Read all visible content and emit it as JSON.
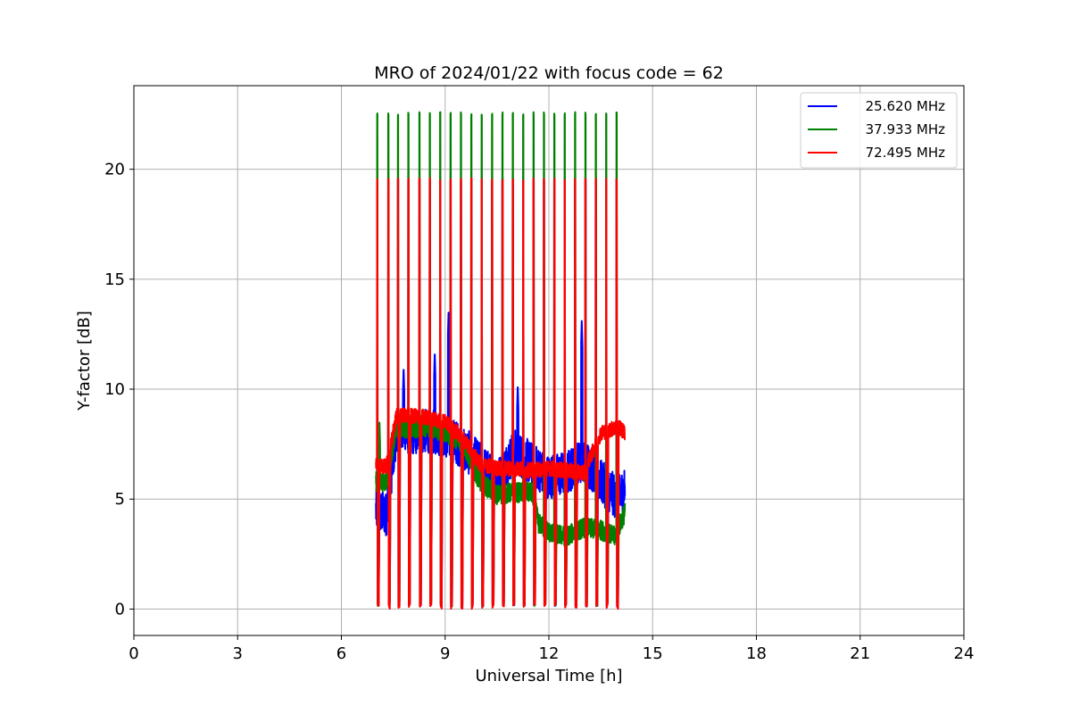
{
  "chart_data": {
    "type": "line",
    "title": "MRO of 2024/01/22 with focus code = 62",
    "xlabel": "Universal Time [h]",
    "ylabel": "Y-factor [dB]",
    "xlim": [
      0,
      24
    ],
    "ylim": [
      -1.2,
      23.8
    ],
    "xticks": [
      0,
      3,
      6,
      9,
      12,
      15,
      18,
      21,
      24
    ],
    "yticks": [
      0,
      5,
      10,
      15,
      20
    ],
    "grid": true,
    "legend_position": "top-right",
    "data_range_hours": [
      7.0,
      14.2
    ],
    "calibration_spike_times": [
      7.03,
      7.35,
      7.63,
      7.93,
      8.25,
      8.55,
      8.85,
      9.15,
      9.45,
      9.75,
      10.05,
      10.35,
      10.65,
      10.95,
      11.25,
      11.55,
      11.85,
      12.15,
      12.45,
      12.75,
      13.05,
      13.35,
      13.65,
      13.95
    ],
    "series": [
      {
        "name": "25.620 MHz",
        "color": "#0000ff",
        "spike_peak": 19.6,
        "spike_min": 0.1,
        "baseline": {
          "x": [
            7.0,
            7.3,
            7.6,
            8.0,
            8.5,
            9.0,
            9.5,
            10.0,
            10.5,
            11.0,
            11.5,
            12.0,
            12.5,
            13.0,
            13.5,
            14.0,
            14.2
          ],
          "y": [
            4.5,
            4.3,
            8.2,
            8.0,
            8.1,
            7.9,
            7.4,
            6.6,
            5.8,
            7.2,
            6.6,
            6.0,
            6.2,
            6.8,
            5.8,
            5.0,
            5.5
          ]
        },
        "noise": 1.0,
        "excursions": [
          {
            "x": 9.1,
            "y": 13.6
          },
          {
            "x": 12.95,
            "y": 13.1
          },
          {
            "x": 8.7,
            "y": 11.7
          },
          {
            "x": 13.7,
            "y": 11.4
          },
          {
            "x": 7.8,
            "y": 11.0
          },
          {
            "x": 11.1,
            "y": 10.2
          }
        ]
      },
      {
        "name": "37.933 MHz",
        "color": "#008000",
        "spike_peak": 22.6,
        "spike_min": 0.1,
        "baseline": {
          "x": [
            7.0,
            7.3,
            7.6,
            8.0,
            8.5,
            9.0,
            9.5,
            10.0,
            10.5,
            11.0,
            11.5,
            11.7,
            12.0,
            12.5,
            13.0,
            13.5,
            13.9,
            14.2
          ],
          "y": [
            5.8,
            5.8,
            8.3,
            8.2,
            8.3,
            8.0,
            7.6,
            5.8,
            5.2,
            5.3,
            5.3,
            3.9,
            3.5,
            3.3,
            3.7,
            3.6,
            3.3,
            4.4
          ]
        },
        "noise": 0.45,
        "excursions": [
          {
            "x": 7.1,
            "y": 8.6
          }
        ]
      },
      {
        "name": "72.495 MHz",
        "color": "#ff0000",
        "spike_peak": 19.6,
        "spike_min": 0.0,
        "baseline": {
          "x": [
            7.0,
            7.3,
            7.6,
            8.0,
            8.5,
            9.0,
            9.5,
            10.0,
            10.5,
            11.0,
            11.5,
            12.0,
            12.5,
            13.0,
            13.5,
            14.0,
            14.2
          ],
          "y": [
            6.5,
            6.5,
            8.8,
            8.8,
            8.7,
            8.5,
            7.8,
            6.6,
            6.4,
            6.4,
            6.3,
            6.4,
            6.3,
            6.2,
            8.0,
            8.3,
            8.0
          ]
        },
        "noise": 0.35,
        "excursions": []
      }
    ]
  }
}
